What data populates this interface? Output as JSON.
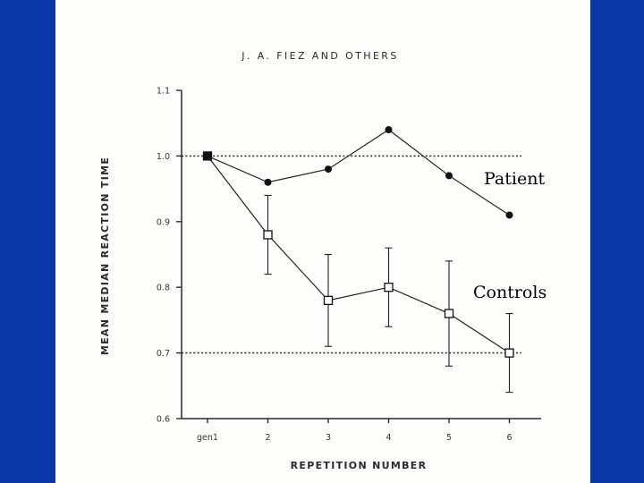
{
  "slide": {
    "colors": {
      "frame": "#0b36a8",
      "paper": "#fdfdfb",
      "ink": "#2a2a2a"
    }
  },
  "chart_data": {
    "type": "line",
    "header": "J. A. FIEZ AND OTHERS",
    "xlabel": "REPETITION NUMBER",
    "ylabel": "MEAN MEDIAN REACTION TIME",
    "categories": [
      "gen1",
      "2",
      "3",
      "4",
      "5",
      "6"
    ],
    "ylim": [
      0.6,
      1.1
    ],
    "yticks": [
      0.6,
      0.7,
      0.8,
      0.9,
      1.0,
      1.1
    ],
    "ytick_labels": [
      "0.6",
      "0.7",
      "0.8",
      "0.9",
      "1.0",
      "1.1"
    ],
    "reference_lines": [
      1.0,
      0.7
    ],
    "series": [
      {
        "name": "Patient",
        "marker": "filled-circle",
        "values": [
          1.0,
          0.96,
          0.98,
          1.04,
          0.97,
          0.91
        ]
      },
      {
        "name": "Controls",
        "marker": "open-square",
        "values": [
          1.0,
          0.88,
          0.78,
          0.8,
          0.76,
          0.7
        ],
        "error": [
          0,
          0.06,
          0.07,
          0.06,
          0.08,
          0.06
        ]
      }
    ],
    "annotations": [
      {
        "text": "Patient",
        "series": "Patient"
      },
      {
        "text": "Controls",
        "series": "Controls"
      }
    ]
  }
}
